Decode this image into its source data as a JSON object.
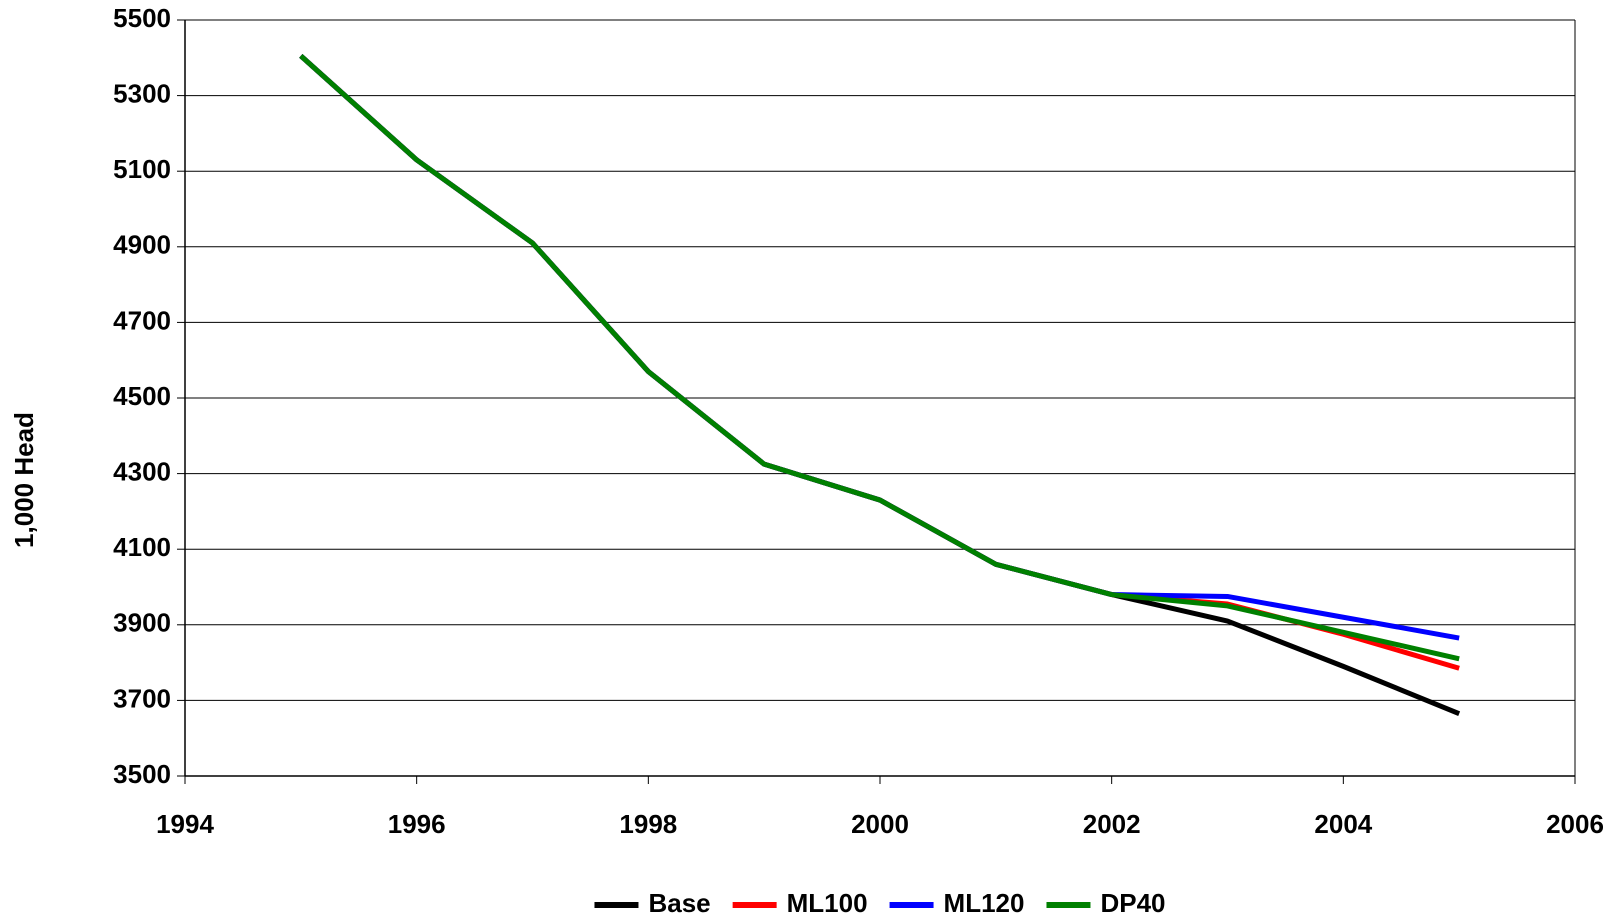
{
  "chart_data": {
    "type": "line",
    "ylabel": "1,000 Head",
    "x": [
      1995,
      1996,
      1997,
      1998,
      1999,
      2000,
      2001,
      2002,
      2003,
      2004,
      2005
    ],
    "series": [
      {
        "name": "Base",
        "color": "#000000",
        "values": [
          5405,
          5130,
          4910,
          4570,
          4325,
          4230,
          4060,
          3980,
          3910,
          3790,
          3665
        ]
      },
      {
        "name": "ML100",
        "color": "#ff0000",
        "values": [
          5405,
          5130,
          4910,
          4570,
          4325,
          4230,
          4060,
          3980,
          3955,
          3875,
          3785
        ]
      },
      {
        "name": "ML120",
        "color": "#0000ff",
        "values": [
          5405,
          5130,
          4910,
          4570,
          4325,
          4230,
          4060,
          3980,
          3975,
          3920,
          3865
        ]
      },
      {
        "name": "DP40",
        "color": "#008000",
        "values": [
          5405,
          5130,
          4910,
          4570,
          4325,
          4230,
          4060,
          3980,
          3950,
          3880,
          3810
        ]
      }
    ],
    "xlim": [
      1994,
      2006
    ],
    "xticks": [
      1994,
      1996,
      1998,
      2000,
      2002,
      2004,
      2006
    ],
    "ylim": [
      3500,
      5500
    ],
    "yticks": [
      3500,
      3700,
      3900,
      4100,
      4300,
      4500,
      4700,
      4900,
      5100,
      5300,
      5500
    ],
    "grid": true,
    "legend": "bottom"
  }
}
